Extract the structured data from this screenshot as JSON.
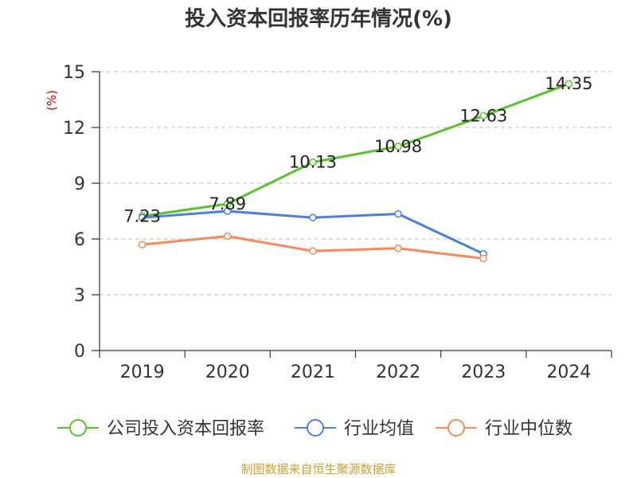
{
  "chart_data": {
    "type": "line",
    "title": "投入资本回报率历年情况(%)",
    "ylabel": "(%)",
    "xlabel": "",
    "ylim": [
      0,
      15
    ],
    "yticks": [
      0,
      3,
      6,
      9,
      12,
      15
    ],
    "categories": [
      "2019",
      "2020",
      "2021",
      "2022",
      "2023",
      "2024"
    ],
    "grid": true,
    "legend_position": "bottom",
    "series": [
      {
        "name": "公司投入资本回报率",
        "color": "#5ac22d",
        "values": [
          7.23,
          7.89,
          10.13,
          10.98,
          12.63,
          14.35
        ],
        "labels": [
          "7.23",
          "7.89",
          "10.13",
          "10.98",
          "12.63",
          "14.35"
        ]
      },
      {
        "name": "行业均值",
        "color": "#4c7fde",
        "values": [
          7.15,
          7.5,
          7.15,
          7.35,
          5.2,
          null
        ]
      },
      {
        "name": "行业中位数",
        "color": "#f58a5b",
        "values": [
          5.7,
          6.15,
          5.35,
          5.5,
          4.95,
          null
        ]
      }
    ]
  },
  "source": "制图数据来自恒生聚源数据库"
}
